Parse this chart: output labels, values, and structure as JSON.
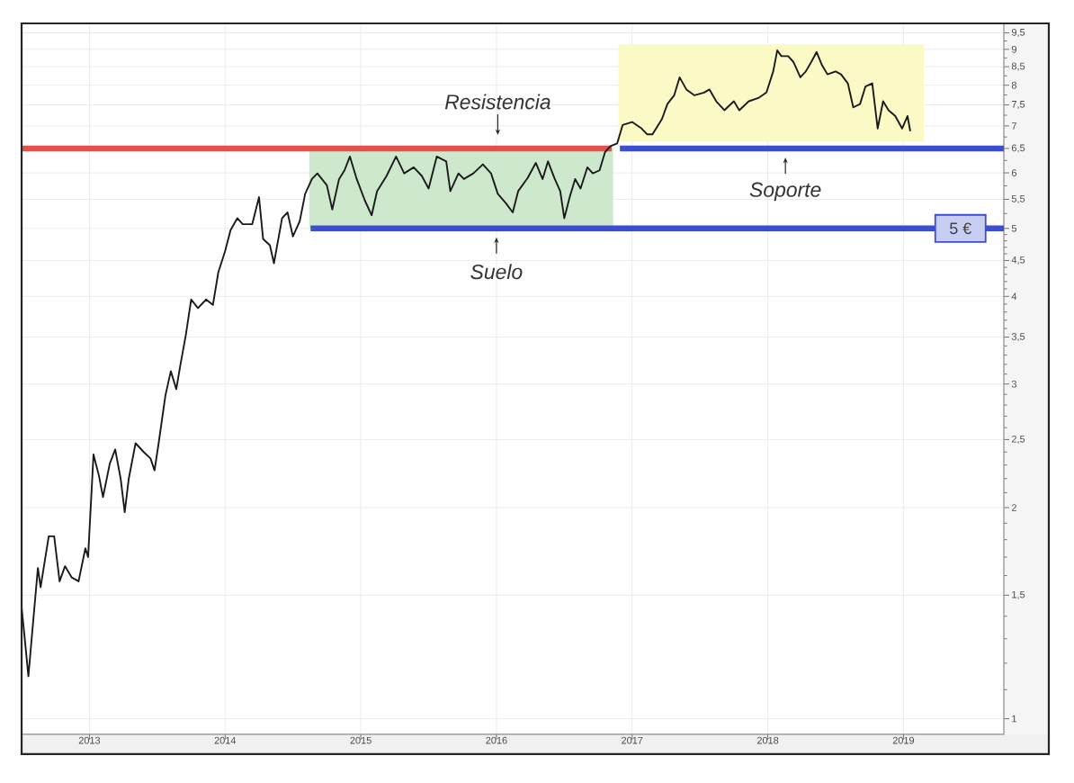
{
  "chart_data": {
    "type": "line",
    "xlim": [
      2012.5,
      2019.74
    ],
    "ylim": [
      0.95,
      9.8
    ],
    "log": "y",
    "grid": true,
    "xticks": [
      2013,
      2014,
      2015,
      2016,
      2017,
      2018,
      2019
    ],
    "yticks": [
      1,
      {
        "value": 1.1,
        "label": null
      },
      {
        "value": 1.2,
        "label": null
      },
      {
        "value": 1.3,
        "label": null
      },
      {
        "value": 1.4,
        "label": null
      },
      {
        "value": 1.5,
        "label": "1,5"
      },
      {
        "value": 1.6,
        "label": null
      },
      {
        "value": 1.7,
        "label": null
      },
      {
        "value": 1.8,
        "label": null
      },
      {
        "value": 1.9,
        "label": null
      },
      2,
      {
        "value": 2.1,
        "label": null
      },
      {
        "value": 2.2,
        "label": null
      },
      {
        "value": 2.3,
        "label": null
      },
      {
        "value": 2.4,
        "label": null
      },
      {
        "value": 2.5,
        "label": "2,5"
      },
      {
        "value": 2.6,
        "label": null
      },
      {
        "value": 2.7,
        "label": null
      },
      {
        "value": 2.8,
        "label": null
      },
      {
        "value": 2.9,
        "label": null
      },
      3,
      {
        "value": 3.1,
        "label": null
      },
      {
        "value": 3.2,
        "label": null
      },
      {
        "value": 3.3,
        "label": null
      },
      {
        "value": 3.4,
        "label": null
      },
      {
        "value": 3.5,
        "label": "3,5"
      },
      {
        "value": 3.6,
        "label": null
      },
      {
        "value": 3.7,
        "label": null
      },
      {
        "value": 3.8,
        "label": null
      },
      {
        "value": 3.9,
        "label": null
      },
      4,
      {
        "value": 4.1,
        "label": null
      },
      {
        "value": 4.2,
        "label": null
      },
      {
        "value": 4.3,
        "label": null
      },
      {
        "value": 4.4,
        "label": null
      },
      {
        "value": 4.5,
        "label": "4,5"
      },
      {
        "value": 4.6,
        "label": null
      },
      {
        "value": 4.7,
        "label": null
      },
      {
        "value": 4.8,
        "label": null
      },
      {
        "value": 4.9,
        "label": null
      },
      5,
      {
        "value": 5.25,
        "label": null
      },
      {
        "value": 5.5,
        "label": "5,5"
      },
      {
        "value": 5.75,
        "label": null
      },
      6,
      {
        "value": 6.25,
        "label": null
      },
      {
        "value": 6.5,
        "label": "6,5"
      },
      {
        "value": 6.75,
        "label": null
      },
      7,
      {
        "value": 7.25,
        "label": null
      },
      {
        "value": 7.5,
        "label": "7,5"
      },
      {
        "value": 7.75,
        "label": null
      },
      8,
      {
        "value": 8.25,
        "label": null
      },
      {
        "value": 8.5,
        "label": "8,5"
      },
      {
        "value": 8.75,
        "label": null
      },
      9,
      {
        "value": 9.25,
        "label": null
      },
      {
        "value": 9.5,
        "label": "9,5"
      }
    ],
    "series": [
      {
        "color": "#cde8cd",
        "x": [
          2014.62,
          2016.86
        ],
        "values": [
          null,
          null
        ],
        "lower": [
          5,
          5
        ],
        "upper": [
          6.5,
          6.5
        ]
      },
      {
        "color": "#fbf9c6",
        "x": [
          2016.9,
          2019.15
        ],
        "values": [
          null,
          null
        ],
        "lower": [
          6.65,
          6.65
        ],
        "upper": [
          9.15,
          9.15
        ]
      },
      {
        "color": "#e4504c",
        "x": [
          2012.5,
          2016.85
        ],
        "values": [
          6.5,
          6.5
        ]
      },
      {
        "color": "#3a4ecf",
        "x": [
          2016.91,
          2019.74
        ],
        "values": [
          6.5,
          6.5
        ]
      },
      {
        "color": "#3a4ecf",
        "x": [
          2014.63,
          2019.74
        ],
        "values": [
          5,
          5
        ]
      },
      {
        "color": "#1a1a1a",
        "x": [
          2012.5,
          2012.52,
          2012.55,
          2012.58,
          2012.62,
          2012.64,
          2012.7,
          2012.74,
          2012.78,
          2012.82,
          2012.87,
          2012.92,
          2012.97,
          2012.99,
          2013.03,
          2013.07,
          2013.1,
          2013.15,
          2013.19,
          2013.23,
          2013.26,
          2013.29,
          2013.34,
          2013.4,
          2013.45,
          2013.48,
          2013.51,
          2013.56,
          2013.6,
          2013.64,
          2013.67,
          2013.71,
          2013.75,
          2013.8,
          2013.86,
          2013.91,
          2013.95,
          2014.0,
          2014.04,
          2014.09,
          2014.13,
          2014.2,
          2014.25,
          2014.28,
          2014.33,
          2014.36,
          2014.42,
          2014.46,
          2014.5,
          2014.55,
          2014.59,
          2014.64,
          2014.68,
          2014.75,
          2014.79,
          2014.84,
          2014.88,
          2014.92,
          2014.97,
          2015.03,
          2015.08,
          2015.12,
          2015.19,
          2015.26,
          2015.32,
          2015.39,
          2015.45,
          2015.5,
          2015.56,
          2015.63,
          2015.66,
          2015.72,
          2015.76,
          2015.83,
          2015.9,
          2015.96,
          2016.01,
          2016.07,
          2016.12,
          2016.16,
          2016.23,
          2016.29,
          2016.34,
          2016.38,
          2016.43,
          2016.47,
          2016.5,
          2016.54,
          2016.58,
          2016.62,
          2016.67,
          2016.71,
          2016.76,
          2016.8,
          2016.84,
          2016.89,
          2016.93,
          2017.0,
          2017.07,
          2017.11,
          2017.15,
          2017.22,
          2017.26,
          2017.31,
          2017.35,
          2017.4,
          2017.46,
          2017.53,
          2017.57,
          2017.62,
          2017.68,
          2017.75,
          2017.79,
          2017.86,
          2017.93,
          2017.99,
          2018.04,
          2018.07,
          2018.1,
          2018.15,
          2018.19,
          2018.24,
          2018.28,
          2018.32,
          2018.36,
          2018.4,
          2018.44,
          2018.5,
          2018.54,
          2018.59,
          2018.63,
          2018.68,
          2018.72,
          2018.77,
          2018.81,
          2018.85,
          2018.89,
          2018.94,
          2018.99,
          2019.03,
          2019.05
        ],
        "values": [
          1.44,
          1.32,
          1.15,
          1.34,
          1.64,
          1.54,
          1.82,
          1.82,
          1.57,
          1.65,
          1.59,
          1.57,
          1.75,
          1.7,
          2.38,
          2.22,
          2.07,
          2.31,
          2.42,
          2.2,
          1.97,
          2.2,
          2.47,
          2.4,
          2.35,
          2.26,
          2.47,
          2.89,
          3.13,
          2.95,
          3.19,
          3.52,
          3.96,
          3.85,
          3.96,
          3.89,
          4.33,
          4.64,
          4.97,
          5.17,
          5.07,
          5.07,
          5.54,
          4.83,
          4.73,
          4.46,
          5.17,
          5.27,
          4.87,
          5.12,
          5.6,
          5.88,
          5.99,
          5.76,
          5.32,
          5.88,
          6.05,
          6.33,
          5.88,
          5.48,
          5.22,
          5.65,
          5.94,
          6.33,
          5.99,
          6.11,
          5.94,
          5.7,
          6.33,
          6.23,
          5.65,
          5.99,
          5.88,
          5.99,
          6.17,
          5.99,
          5.6,
          5.43,
          5.27,
          5.65,
          5.9,
          6.2,
          5.88,
          6.23,
          5.88,
          5.65,
          5.17,
          5.54,
          5.88,
          5.7,
          6.11,
          5.99,
          6.05,
          6.42,
          6.55,
          6.61,
          7.02,
          7.09,
          6.94,
          6.81,
          6.81,
          7.16,
          7.52,
          7.74,
          8.21,
          7.89,
          7.74,
          7.81,
          7.89,
          7.59,
          7.37,
          7.59,
          7.37,
          7.59,
          7.67,
          7.81,
          8.37,
          8.97,
          8.8,
          8.8,
          8.63,
          8.21,
          8.37,
          8.63,
          8.92,
          8.54,
          8.29,
          8.37,
          8.29,
          8.05,
          7.44,
          7.52,
          7.97,
          8.05,
          6.94,
          7.59,
          7.37,
          7.23,
          6.94,
          7.23,
          6.88
        ]
      }
    ],
    "annotations": [
      {
        "text": "Resistencia",
        "x": 2016.01,
        "y": 6.5
      },
      {
        "text": "Suelo",
        "x": 2016.0,
        "y": 5
      },
      {
        "text": "Soporte",
        "x": 2018.13,
        "y": 6.5
      },
      {
        "text": "5 €",
        "x": 2019.42,
        "y": 5
      }
    ]
  }
}
